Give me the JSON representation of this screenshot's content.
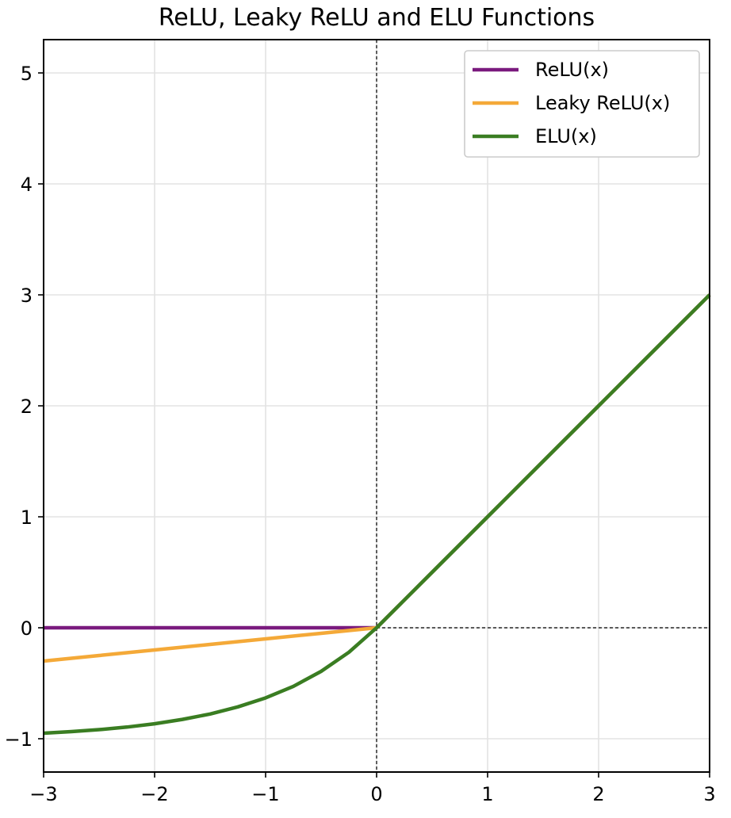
{
  "chart_data": {
    "type": "line",
    "title": "ReLU, Leaky ReLU and ELU Functions",
    "xlabel": "",
    "ylabel": "",
    "xlim": [
      -3,
      3
    ],
    "ylim": [
      -1.3,
      5.3
    ],
    "xticks": [
      -3,
      -2,
      -1,
      0,
      1,
      2,
      3
    ],
    "xtick_labels": [
      "−3",
      "−2",
      "−1",
      "0",
      "1",
      "2",
      "3"
    ],
    "yticks": [
      -1,
      0,
      1,
      2,
      3,
      4,
      5
    ],
    "ytick_labels": [
      "−1",
      "0",
      "1",
      "2",
      "3",
      "4",
      "5"
    ],
    "grid": true,
    "reference_lines": {
      "x": 0,
      "y": 0,
      "style": "dashed",
      "color": "#000000"
    },
    "legend": {
      "position": "top-right"
    },
    "series": [
      {
        "name": "ReLU(x)",
        "color": "#7a1a7e",
        "x": [
          -3,
          -2.5,
          -2,
          -1.5,
          -1,
          -0.5,
          0,
          0.5,
          1,
          1.5,
          2,
          2.5,
          3
        ],
        "y": [
          0,
          0,
          0,
          0,
          0,
          0,
          0,
          0.5,
          1,
          1.5,
          2,
          2.5,
          3
        ]
      },
      {
        "name": "Leaky ReLU(x)",
        "color": "#f4a938",
        "x": [
          -3,
          -2.5,
          -2,
          -1.5,
          -1,
          -0.5,
          0,
          0.5,
          1,
          1.5,
          2,
          2.5,
          3
        ],
        "y": [
          -0.3,
          -0.25,
          -0.2,
          -0.15,
          -0.1,
          -0.05,
          0,
          0.5,
          1,
          1.5,
          2,
          2.5,
          3
        ]
      },
      {
        "name": "ELU(x)",
        "color": "#3a7d22",
        "x": [
          -3,
          -2.75,
          -2.5,
          -2.25,
          -2,
          -1.75,
          -1.5,
          -1.25,
          -1,
          -0.75,
          -0.5,
          -0.25,
          0,
          0.5,
          1,
          1.5,
          2,
          2.5,
          3
        ],
        "y": [
          -0.95,
          -0.936,
          -0.918,
          -0.895,
          -0.865,
          -0.826,
          -0.777,
          -0.713,
          -0.632,
          -0.528,
          -0.393,
          -0.221,
          0,
          0.5,
          1,
          1.5,
          2,
          2.5,
          3
        ]
      }
    ]
  }
}
